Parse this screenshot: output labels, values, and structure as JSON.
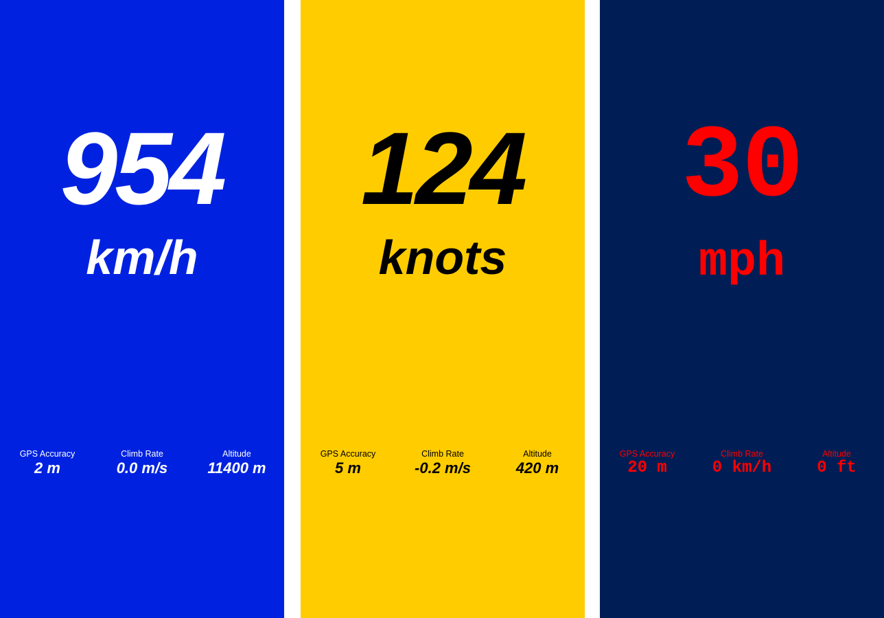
{
  "screens": [
    {
      "theme": "italic-sans",
      "background": "#0022E0",
      "text_color": "#FFFFFF",
      "speed": "954",
      "unit": "km/h",
      "stats": [
        {
          "label": "GPS Accuracy",
          "value": "2 m"
        },
        {
          "label": "Climb Rate",
          "value": "0.0 m/s"
        },
        {
          "label": "Altitude",
          "value": "11400 m"
        }
      ]
    },
    {
      "theme": "italic-sans",
      "background": "#FFCC00",
      "text_color": "#000000",
      "speed": "124",
      "unit": "knots",
      "stats": [
        {
          "label": "GPS Accuracy",
          "value": "5 m"
        },
        {
          "label": "Climb Rate",
          "value": "-0.2 m/s"
        },
        {
          "label": "Altitude",
          "value": "420 m"
        }
      ]
    },
    {
      "theme": "mono",
      "background": "#001E55",
      "text_color": "#FF0000",
      "speed": "30",
      "unit": "mph",
      "stats": [
        {
          "label": "GPS Accuracy",
          "value": "20 m"
        },
        {
          "label": "Climb Rate",
          "value": "0 km/h"
        },
        {
          "label": "Altitude",
          "value": "0 ft"
        }
      ]
    }
  ]
}
